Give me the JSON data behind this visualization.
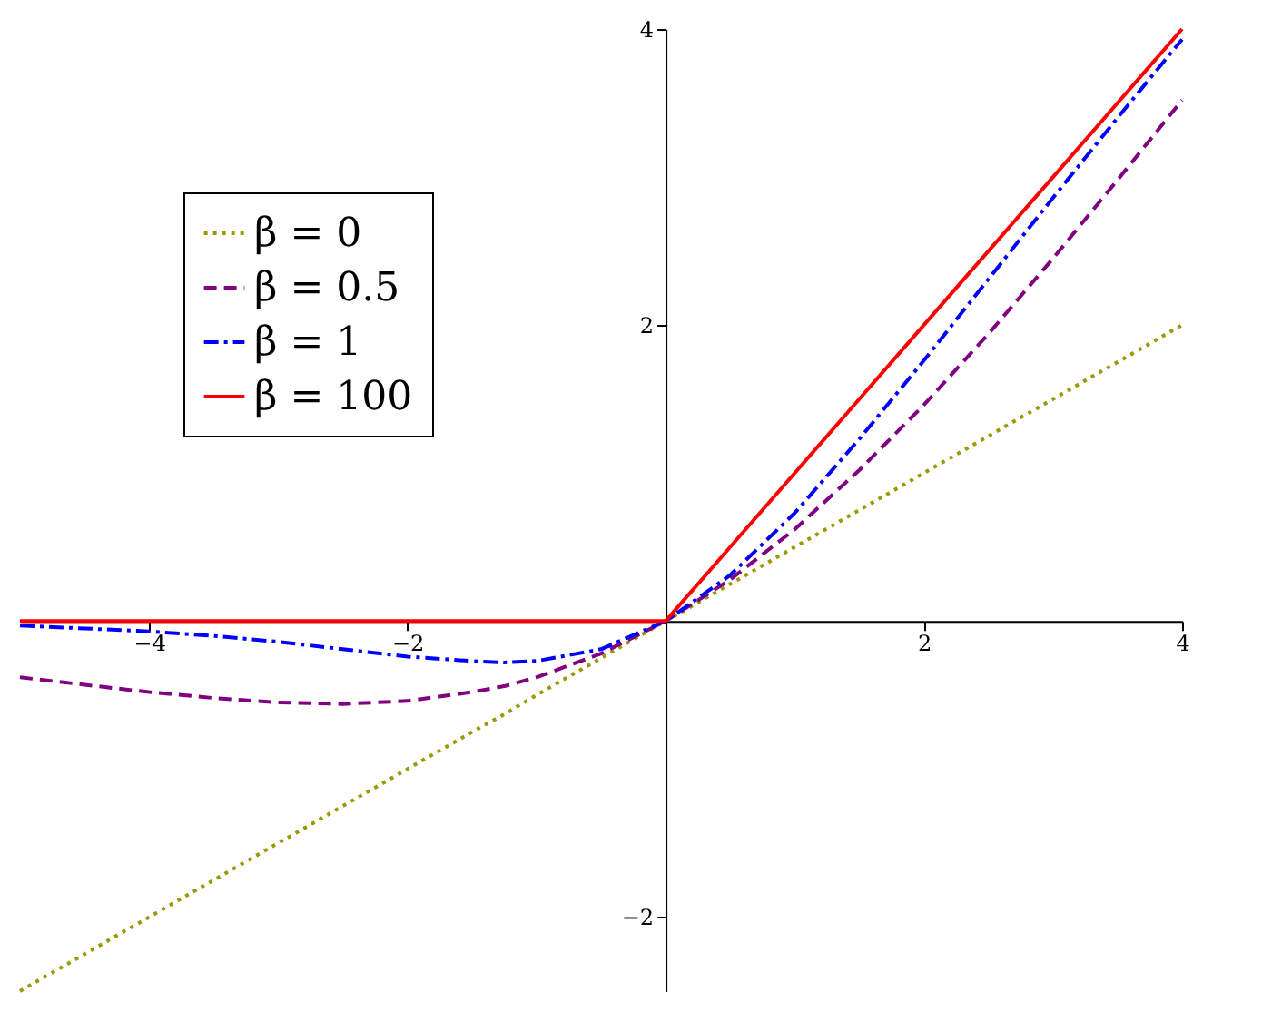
{
  "chart_data": {
    "type": "line",
    "x": [
      -5,
      -4.5,
      -4,
      -3.5,
      -3,
      -2.5,
      -2,
      -1.5,
      -1.25,
      -1,
      -0.5,
      0,
      0.5,
      1,
      1.5,
      2,
      2.5,
      3,
      3.5,
      4
    ],
    "series": [
      {
        "name": "β = 0",
        "color": "#9a9a00",
        "line_style": "dotted",
        "values": [
          -2.5,
          -2.25,
          -2,
          -1.75,
          -1.5,
          -1.25,
          -1,
          -0.75,
          -0.63,
          -0.5,
          -0.25,
          0,
          0.25,
          0.5,
          0.75,
          1,
          1.25,
          1.5,
          1.75,
          2
        ]
      },
      {
        "name": "β = 0.5",
        "color": "#800080",
        "line_style": "dashed",
        "values": [
          -0.38,
          -0.43,
          -0.48,
          -0.52,
          -0.55,
          -0.56,
          -0.54,
          -0.48,
          -0.44,
          -0.38,
          -0.22,
          0,
          0.28,
          0.62,
          1.02,
          1.46,
          1.94,
          2.45,
          2.98,
          3.52
        ]
      },
      {
        "name": "β = 1",
        "color": "#0000ff",
        "line_style": "dashdot",
        "values": [
          -0.03,
          -0.05,
          -0.07,
          -0.1,
          -0.14,
          -0.19,
          -0.24,
          -0.27,
          -0.28,
          -0.27,
          -0.19,
          0,
          0.31,
          0.73,
          1.23,
          1.76,
          2.31,
          2.86,
          3.4,
          3.93
        ]
      },
      {
        "name": "β = 100",
        "color": "#ff0000",
        "line_style": "solid",
        "values": [
          0,
          0,
          0,
          0,
          0,
          0,
          0,
          0,
          0,
          0,
          0,
          0,
          0.5,
          1,
          1.5,
          2,
          2.5,
          3,
          3.5,
          4
        ]
      }
    ],
    "xlim": [
      -5,
      4
    ],
    "ylim": [
      -2.5,
      4
    ],
    "xticks": [
      -4,
      -2,
      2,
      4
    ],
    "yticks": [
      -2,
      2,
      4
    ],
    "grid": false,
    "legend": "top left"
  }
}
